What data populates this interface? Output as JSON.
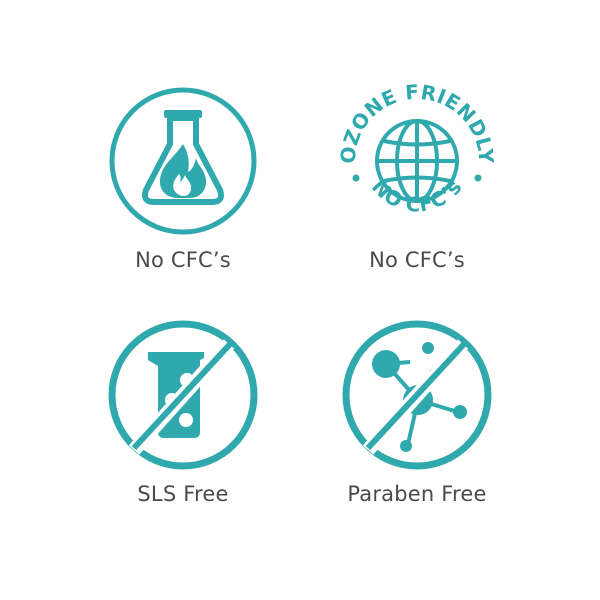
{
  "colors": {
    "accent": "#2fa9ad",
    "caption_text": "#4a4a4a",
    "background": "#ffffff"
  },
  "badges": [
    {
      "icon": "flask-flame-icon",
      "caption": "No CFC’s"
    },
    {
      "icon": "ozone-friendly-globe-seal-icon",
      "caption": "No CFC’s",
      "seal_top_text": "OZONE FRIENDLY",
      "seal_bottom_text": "NO CFC’s"
    },
    {
      "icon": "no-sls-beaker-icon",
      "caption": "SLS Free"
    },
    {
      "icon": "no-paraben-molecule-icon",
      "caption": "Paraben Free"
    }
  ]
}
